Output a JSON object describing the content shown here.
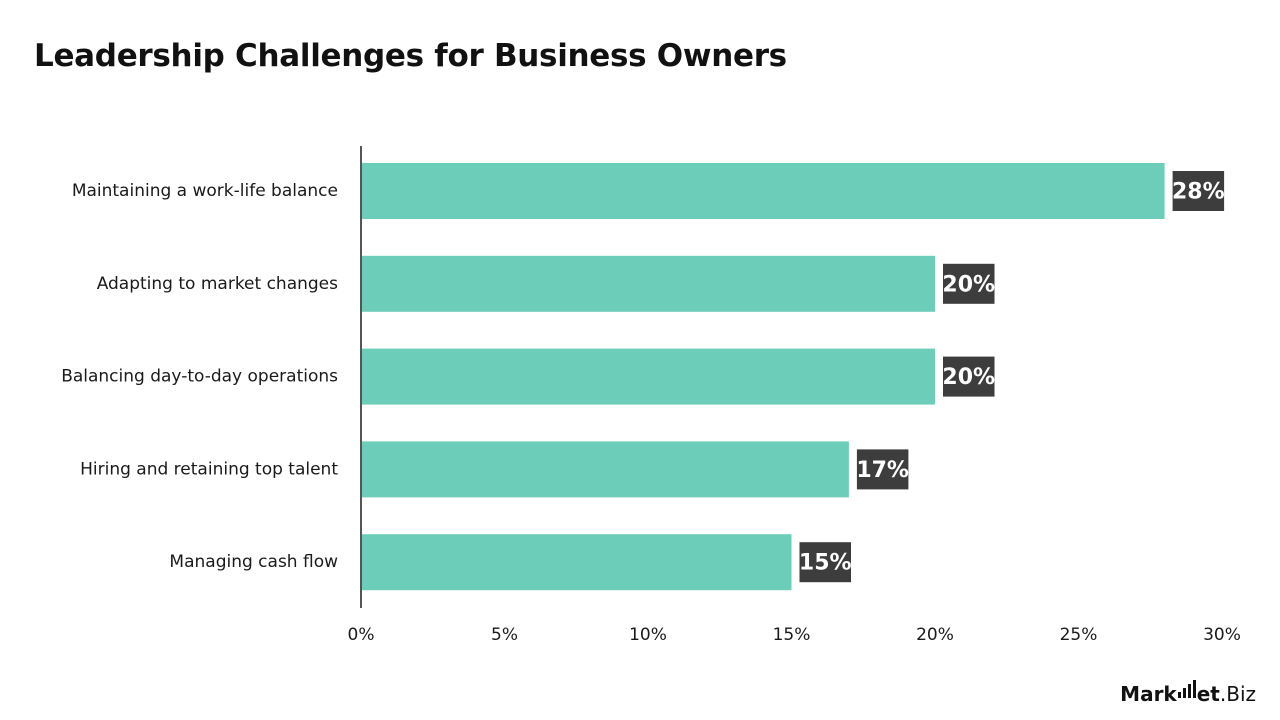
{
  "chart_data": {
    "type": "bar",
    "orientation": "horizontal",
    "title": "Leadership Challenges for Business Owners",
    "xlabel": "",
    "ylabel": "",
    "categories": [
      "Maintaining a work-life balance",
      "Adapting to market changes",
      "Balancing day-to-day operations",
      "Hiring and retaining top talent",
      "Managing cash flow"
    ],
    "values": [
      28,
      20,
      20,
      17,
      15
    ],
    "data_labels": [
      "28%",
      "20%",
      "20%",
      "17%",
      "15%"
    ],
    "xlim": [
      0,
      30
    ],
    "x_ticks": [
      0,
      5,
      10,
      15,
      20,
      25,
      30
    ],
    "x_tick_labels": [
      "0%",
      "5%",
      "10%",
      "15%",
      "20%",
      "25%",
      "30%"
    ],
    "grid": false,
    "legend": "none",
    "colors": {
      "bar": "#6ccdb8",
      "label_bg": "#3d3d3d",
      "label_text": "#ffffff",
      "axis": "#555555"
    }
  },
  "branding": {
    "logo_text": "Market.Biz"
  }
}
